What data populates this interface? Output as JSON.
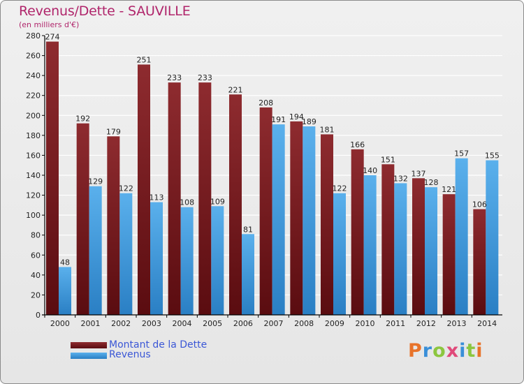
{
  "title": "Revenus/Dette - SAUVILLE",
  "subtitle": "(en milliers d'€)",
  "logo": {
    "letters": [
      "P",
      "r",
      "o",
      "x",
      "i",
      "t",
      "i"
    ],
    "colors": [
      "#e8732a",
      "#3a8fd8",
      "#8cc63f",
      "#e04a7a",
      "#3a8fd8",
      "#8cc63f",
      "#e8732a"
    ]
  },
  "colors": {
    "dette": "#7a1a1e",
    "revenus": "#3f9ee0",
    "grid": "#ffffff",
    "axis": "#000000",
    "title": "#b0256b",
    "legend_text": "#3b57d6"
  },
  "chart_data": {
    "type": "bar",
    "title": "Revenus/Dette - SAUVILLE",
    "subtitle": "(en milliers d'€)",
    "categories": [
      "2000",
      "2001",
      "2002",
      "2003",
      "2004",
      "2005",
      "2006",
      "2007",
      "2008",
      "2009",
      "2010",
      "2011",
      "2012",
      "2013",
      "2014"
    ],
    "series": [
      {
        "name": "Montant de la Dette",
        "values": [
          274,
          192,
          179,
          251,
          233,
          233,
          221,
          208,
          194,
          181,
          166,
          151,
          137,
          121,
          106
        ]
      },
      {
        "name": "Revenus",
        "values": [
          48,
          129,
          122,
          113,
          108,
          109,
          81,
          191,
          189,
          122,
          140,
          132,
          128,
          157,
          155
        ]
      }
    ],
    "y_ticks": [
      "0",
      "20",
      "40",
      "60",
      "80",
      "100",
      "120",
      "140",
      "160",
      "180",
      "200",
      "220",
      "240",
      "260",
      "280"
    ],
    "ylim": [
      0,
      280
    ],
    "grid": true,
    "legend_position": "bottom-left"
  }
}
